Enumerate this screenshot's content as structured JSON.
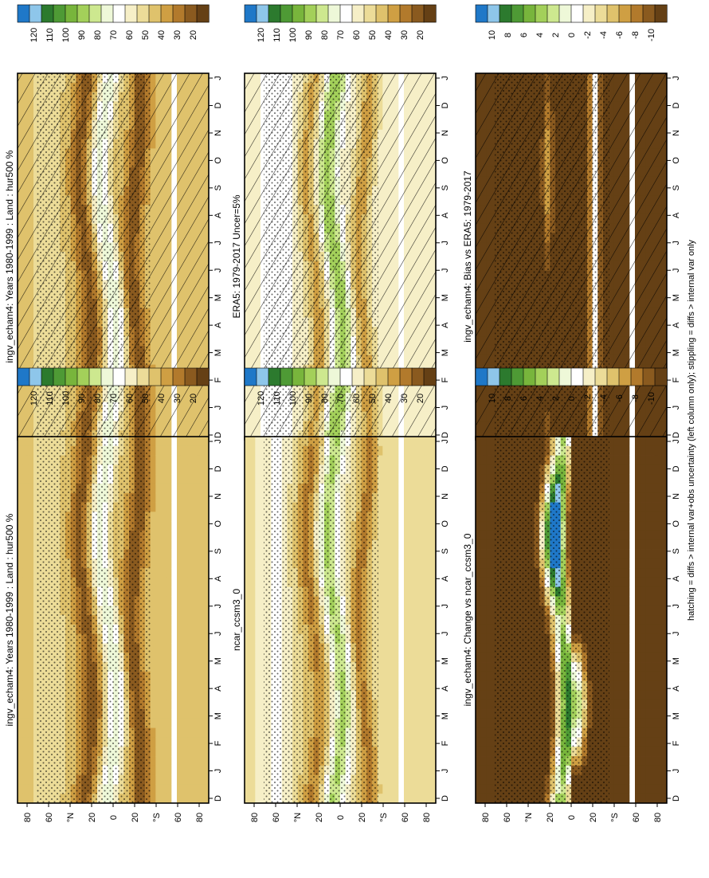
{
  "figure": {
    "footer_note": "hatching = diffs > internal var+obs uncertainty (left column only); stippling = diffs > internal var only"
  },
  "months": [
    "D",
    "J",
    "F",
    "M",
    "A",
    "M",
    "J",
    "J",
    "A",
    "S",
    "O",
    "N",
    "D",
    "J"
  ],
  "lat_labels": [
    "80",
    "60",
    "°N",
    "20",
    "0",
    "20",
    "°S",
    "60",
    "80"
  ],
  "scales": {
    "abs": {
      "labels": [
        "120",
        "110",
        "100",
        "90",
        "80",
        "70",
        "60",
        "50",
        "40",
        "30",
        "20"
      ],
      "colors": [
        "#1f78c8",
        "#8ec6ea",
        "#2c7a2e",
        "#4e9a35",
        "#78b53c",
        "#a3d05a",
        "#cde88f",
        "#eef8d8",
        "#ffffff",
        "#f6efc7",
        "#ecdc98",
        "#dfc26c",
        "#cf9f43",
        "#b27a2c",
        "#8a5a1f",
        "#654015"
      ]
    },
    "diff": {
      "labels": [
        "10",
        "8",
        "6",
        "4",
        "2",
        "0",
        "-2",
        "-4",
        "-6",
        "-8",
        "-10"
      ],
      "colors": [
        "#1f78c8",
        "#8ec6ea",
        "#2c7a2e",
        "#4e9a35",
        "#78b53c",
        "#a3d05a",
        "#cde88f",
        "#eef8d8",
        "#ffffff",
        "#f6efc7",
        "#ecdc98",
        "#dfc26c",
        "#cf9f43",
        "#b27a2c",
        "#8a5a1f",
        "#654015"
      ]
    }
  },
  "chart_data": [
    {
      "type": "heatmap",
      "title": "ingv_echam4: Years 1980-1999 : Land : hur500 %",
      "scale": "abs",
      "hatching": true,
      "stippling": true,
      "field": "model"
    },
    {
      "type": "heatmap",
      "title": "ingv_echam4: Years 1980-1999 : Land : hur500 %",
      "scale": "abs",
      "hatching": false,
      "stippling": true,
      "field": "model"
    },
    {
      "type": "heatmap",
      "title": "ERA5: 1979-2017 Uncer=5%",
      "scale": "abs",
      "hatching": true,
      "stippling": true,
      "field": "era5"
    },
    {
      "type": "heatmap",
      "title": "ncar_ccsm3_0",
      "scale": "abs",
      "hatching": false,
      "stippling": true,
      "field": "ncar"
    },
    {
      "type": "heatmap",
      "title": "ingv_echam4: Bias vs ERA5: 1979-2017",
      "scale": "diff",
      "hatching": true,
      "stippling": true,
      "field": "bias"
    },
    {
      "type": "heatmap",
      "title": "ingv_echam4: Change vs ncar_ccsm3_0",
      "scale": "diff",
      "hatching": false,
      "stippling": true,
      "field": "change"
    }
  ]
}
